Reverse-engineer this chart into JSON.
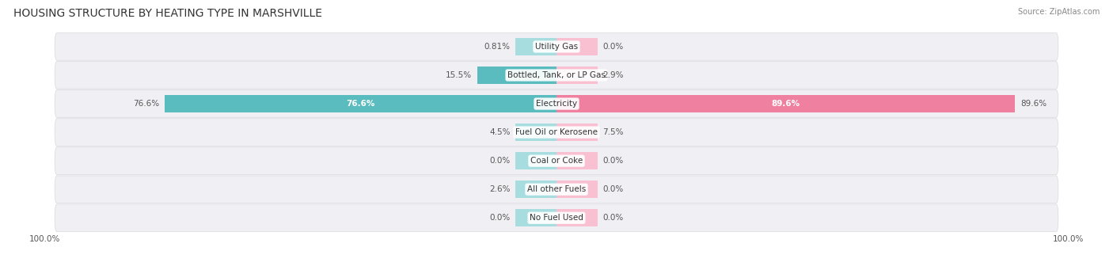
{
  "title": "HOUSING STRUCTURE BY HEATING TYPE IN MARSHVILLE",
  "source": "Source: ZipAtlas.com",
  "categories": [
    "Utility Gas",
    "Bottled, Tank, or LP Gas",
    "Electricity",
    "Fuel Oil or Kerosene",
    "Coal or Coke",
    "All other Fuels",
    "No Fuel Used"
  ],
  "owner_values": [
    0.81,
    15.5,
    76.6,
    4.5,
    0.0,
    2.6,
    0.0
  ],
  "renter_values": [
    0.0,
    2.9,
    89.6,
    7.5,
    0.0,
    0.0,
    0.0
  ],
  "owner_color": "#5bbcbf",
  "renter_color": "#f080a0",
  "owner_color_light": "#a8dde0",
  "renter_color_light": "#f8c0d0",
  "row_bg_color": "#f0f0f4",
  "max_value": 100.0,
  "bar_height": 0.6,
  "min_bar_display": 8.0,
  "title_fontsize": 10,
  "label_fontsize": 7.5,
  "tick_fontsize": 7.5,
  "source_fontsize": 7
}
